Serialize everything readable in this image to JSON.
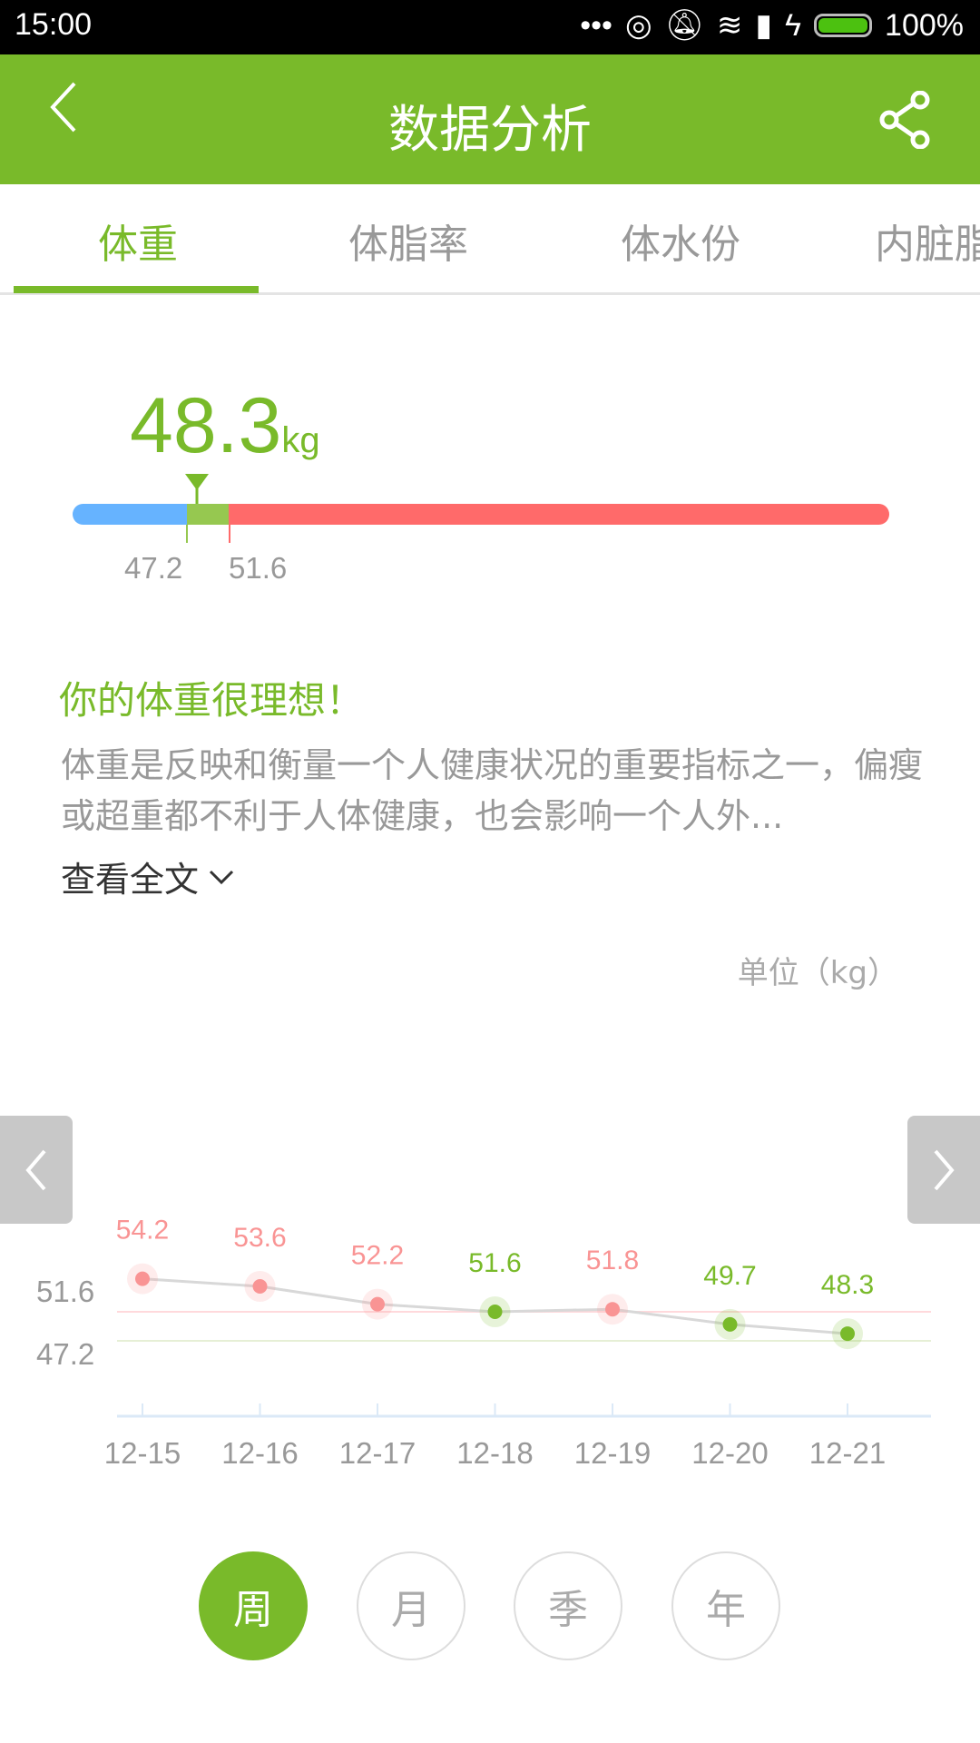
{
  "status_bar": {
    "time": "15:00",
    "battery": "100%",
    "battery_level": 100
  },
  "header": {
    "title": "数据分析",
    "back_icon": "chevron-left-icon",
    "share_icon": "share-icon"
  },
  "tabs": [
    {
      "label": "体重",
      "active": true
    },
    {
      "label": "体脂率"
    },
    {
      "label": "体水份"
    },
    {
      "label": "内脏脂"
    }
  ],
  "summary": {
    "value": "48.3",
    "unit": "kg",
    "range_low": "47.2",
    "range_high": "51.6"
  },
  "advice": {
    "title": "你的体重很理想！",
    "text": "体重是反映和衡量一个人健康状况的重要指标之一，偏瘦或超重都不利于人体健康，也会影响一个人外...",
    "more": "查看全文"
  },
  "colors": {
    "accent": "#79ba2a",
    "under": "#66b3ff",
    "normal": "#96c850",
    "over": "#ff6a6a",
    "point_over": "#f99494"
  },
  "chart_data": {
    "type": "line",
    "unit_label": "单位（kg）",
    "categories": [
      "12-15",
      "12-16",
      "12-17",
      "12-18",
      "12-19",
      "12-20",
      "12-21"
    ],
    "values": [
      54.2,
      53.6,
      52.2,
      51.6,
      51.8,
      49.7,
      48.3
    ],
    "value_labels": [
      "54.2",
      "53.6",
      "52.2",
      "51.6",
      "51.8",
      "49.7",
      "48.3"
    ],
    "reference_lines": [
      {
        "label": "51.6",
        "value": 51.6,
        "color": "#ffd9dc"
      },
      {
        "label": "47.2",
        "value": 47.2,
        "color": "#e6efd6"
      }
    ]
  },
  "periods": [
    {
      "label": "周",
      "active": true
    },
    {
      "label": "月"
    },
    {
      "label": "季"
    },
    {
      "label": "年"
    }
  ]
}
